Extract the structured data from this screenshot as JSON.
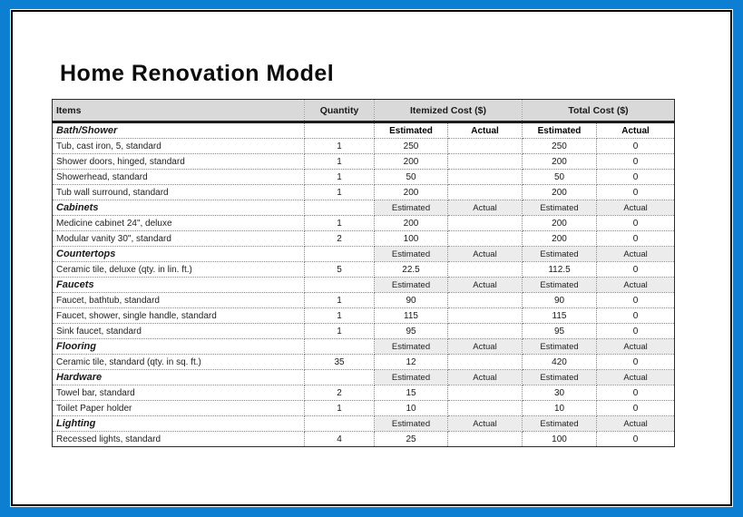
{
  "page": {
    "title": "Home Renovation Model"
  },
  "colors": {
    "frame_blue": "#0c7fd2",
    "header_gray": "#d9d9d9",
    "section_subheader_gray": "#ececec",
    "page_border": "#000000"
  },
  "table": {
    "columns": {
      "items": "Items",
      "quantity": "Quantity",
      "itemized": "Itemized Cost ($)",
      "total": "Total Cost ($)",
      "estimated": "Estimated",
      "actual": "Actual"
    },
    "sections": [
      {
        "name": "Bath/Shower",
        "rows": [
          {
            "item": "Tub, cast iron, 5, standard",
            "qty": "1",
            "item_est": "250",
            "item_act": "",
            "total_est": "250",
            "total_act": "0"
          },
          {
            "item": "Shower doors, hinged, standard",
            "qty": "1",
            "item_est": "200",
            "item_act": "",
            "total_est": "200",
            "total_act": "0"
          },
          {
            "item": "Showerhead, standard",
            "qty": "1",
            "item_est": "50",
            "item_act": "",
            "total_est": "50",
            "total_act": "0"
          },
          {
            "item": "Tub wall surround, standard",
            "qty": "1",
            "item_est": "200",
            "item_act": "",
            "total_est": "200",
            "total_act": "0"
          }
        ]
      },
      {
        "name": "Cabinets",
        "rows": [
          {
            "item": "Medicine cabinet 24\", deluxe",
            "qty": "1",
            "item_est": "200",
            "item_act": "",
            "total_est": "200",
            "total_act": "0"
          },
          {
            "item": "Modular vanity 30\", standard",
            "qty": "2",
            "item_est": "100",
            "item_act": "",
            "total_est": "200",
            "total_act": "0"
          }
        ]
      },
      {
        "name": "Countertops",
        "rows": [
          {
            "item": "Ceramic tile, deluxe (qty. in lin. ft.)",
            "qty": "5",
            "item_est": "22.5",
            "item_act": "",
            "total_est": "112.5",
            "total_act": "0"
          }
        ]
      },
      {
        "name": "Faucets",
        "rows": [
          {
            "item": "Faucet, bathtub, standard",
            "qty": "1",
            "item_est": "90",
            "item_act": "",
            "total_est": "90",
            "total_act": "0"
          },
          {
            "item": "Faucet, shower, single handle, standard",
            "qty": "1",
            "item_est": "115",
            "item_act": "",
            "total_est": "115",
            "total_act": "0"
          },
          {
            "item": "Sink faucet, standard",
            "qty": "1",
            "item_est": "95",
            "item_act": "",
            "total_est": "95",
            "total_act": "0"
          }
        ]
      },
      {
        "name": "Flooring",
        "rows": [
          {
            "item": "Ceramic tile, standard (qty. in sq. ft.)",
            "qty": "35",
            "item_est": "12",
            "item_act": "",
            "total_est": "420",
            "total_act": "0"
          }
        ]
      },
      {
        "name": "Hardware",
        "rows": [
          {
            "item": "Towel bar, standard",
            "qty": "2",
            "item_est": "15",
            "item_act": "",
            "total_est": "30",
            "total_act": "0"
          },
          {
            "item": "Toilet Paper holder",
            "qty": "1",
            "item_est": "10",
            "item_act": "",
            "total_est": "10",
            "total_act": "0"
          }
        ]
      },
      {
        "name": "Lighting",
        "rows": [
          {
            "item": "Recessed lights, standard",
            "qty": "4",
            "item_est": "25",
            "item_act": "",
            "total_est": "100",
            "total_act": "0"
          }
        ]
      }
    ]
  }
}
